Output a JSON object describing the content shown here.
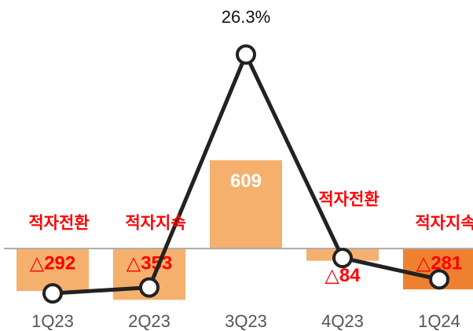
{
  "chart_data": {
    "type": "bar_line",
    "categories": [
      "1Q23",
      "2Q23",
      "3Q23",
      "4Q23",
      "1Q24"
    ],
    "series": [
      {
        "type": "bar",
        "colors": [
          "#f5b06e",
          "#f5b06e",
          "#f5b06e",
          "#f5b06e",
          "#ee8130"
        ],
        "values": [
          -292,
          -353,
          609,
          -84,
          -281
        ],
        "value_labels": [
          "△292",
          "△353",
          "609",
          "△84",
          "△281"
        ]
      },
      {
        "type": "line",
        "axis": "y2",
        "color": "#222222",
        "values": [
          -6.1,
          -5.3,
          26.3,
          -1.3,
          -4.2
        ],
        "value_labels": [
          null,
          null,
          "26.3%",
          null,
          null
        ]
      }
    ],
    "annotations": [
      "적자전환",
      "적자지속",
      null,
      "적자전환",
      "적자지속"
    ],
    "ylim": [
      -400,
      1550
    ],
    "y2lim": [
      -7.9,
      30.5
    ]
  }
}
